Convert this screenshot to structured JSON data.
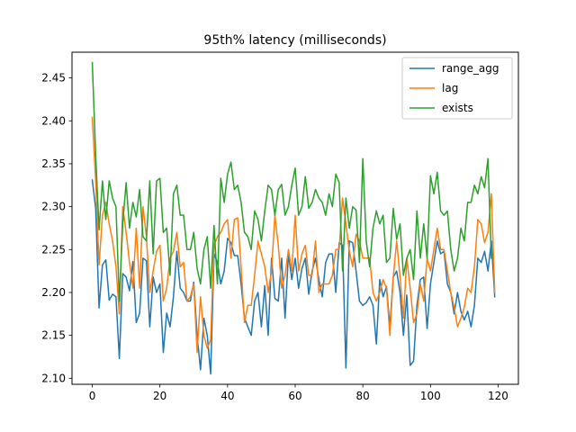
{
  "chart_data": {
    "type": "line",
    "title": "95th% latency (milliseconds)",
    "xlabel": "",
    "ylabel": "",
    "xlim": [
      -6,
      126
    ],
    "ylim": [
      2.093,
      2.48
    ],
    "xticks": [
      0,
      20,
      40,
      60,
      80,
      100,
      120
    ],
    "yticks": [
      2.1,
      2.15,
      2.2,
      2.25,
      2.3,
      2.35,
      2.4,
      2.45
    ],
    "ytick_labels": [
      "2.10",
      "2.15",
      "2.20",
      "2.25",
      "2.30",
      "2.35",
      "2.40",
      "2.45"
    ],
    "grid": false,
    "legend_position": "upper right",
    "series": [
      {
        "name": "range_agg",
        "color": "#1f77b4",
        "values": [
          2.331,
          2.298,
          2.182,
          2.232,
          2.238,
          2.191,
          2.198,
          2.195,
          2.123,
          2.222,
          2.218,
          2.202,
          2.236,
          2.165,
          2.176,
          2.24,
          2.237,
          2.16,
          2.218,
          2.2,
          2.21,
          2.13,
          2.176,
          2.16,
          2.195,
          2.248,
          2.205,
          2.2,
          2.19,
          2.19,
          2.212,
          2.15,
          2.11,
          2.17,
          2.15,
          2.105,
          2.245,
          2.235,
          2.21,
          2.225,
          2.263,
          2.258,
          2.243,
          2.243,
          2.21,
          2.17,
          2.16,
          2.15,
          2.19,
          2.2,
          2.16,
          2.208,
          2.15,
          2.24,
          2.193,
          2.19,
          2.24,
          2.17,
          2.245,
          2.215,
          2.24,
          2.205,
          2.228,
          2.24,
          2.198,
          2.225,
          2.24,
          2.215,
          2.195,
          2.235,
          2.245,
          2.245,
          2.2,
          2.258,
          2.255,
          2.112,
          2.26,
          2.258,
          2.225,
          2.19,
          2.185,
          2.188,
          2.195,
          2.185,
          2.14,
          2.215,
          2.195,
          2.207,
          2.16,
          2.218,
          2.225,
          2.2,
          2.15,
          2.197,
          2.115,
          2.12,
          2.185,
          2.215,
          2.218,
          2.158,
          2.21,
          2.235,
          2.26,
          2.245,
          2.248,
          2.21,
          2.2,
          2.175,
          2.2,
          2.178,
          2.168,
          2.178,
          2.16,
          2.185,
          2.24,
          2.235,
          2.248,
          2.225,
          2.26,
          2.195
        ]
      },
      {
        "name": "lag",
        "color": "#ff7f0e",
        "values": [
          2.404,
          2.33,
          2.232,
          2.29,
          2.305,
          2.28,
          2.26,
          2.23,
          2.175,
          2.3,
          2.27,
          2.235,
          2.205,
          2.275,
          2.205,
          2.3,
          2.265,
          2.2,
          2.225,
          2.248,
          2.255,
          2.19,
          2.205,
          2.24,
          2.248,
          2.27,
          2.23,
          2.235,
          2.19,
          2.195,
          2.21,
          2.13,
          2.195,
          2.15,
          2.135,
          2.145,
          2.255,
          2.265,
          2.27,
          2.28,
          2.285,
          2.24,
          2.285,
          2.287,
          2.23,
          2.165,
          2.185,
          2.185,
          2.22,
          2.26,
          2.245,
          2.23,
          2.2,
          2.225,
          2.29,
          2.255,
          2.205,
          2.22,
          2.25,
          2.225,
          2.29,
          2.225,
          2.245,
          2.255,
          2.22,
          2.22,
          2.26,
          2.2,
          2.21,
          2.21,
          2.21,
          2.22,
          2.25,
          2.25,
          2.31,
          2.28,
          2.248,
          2.23,
          2.268,
          2.26,
          2.24,
          2.24,
          2.24,
          2.2,
          2.19,
          2.2,
          2.215,
          2.205,
          2.15,
          2.218,
          2.26,
          2.218,
          2.17,
          2.24,
          2.205,
          2.165,
          2.175,
          2.21,
          2.19,
          2.24,
          2.225,
          2.25,
          2.275,
          2.25,
          2.25,
          2.225,
          2.2,
          2.183,
          2.16,
          2.17,
          2.183,
          2.205,
          2.2,
          2.23,
          2.285,
          2.28,
          2.258,
          2.27,
          2.315,
          2.2
        ]
      },
      {
        "name": "exists",
        "color": "#2ca02c",
        "values": [
          2.468,
          2.36,
          2.273,
          2.33,
          2.285,
          2.33,
          2.31,
          2.3,
          2.19,
          2.28,
          2.328,
          2.275,
          2.305,
          2.288,
          2.32,
          2.265,
          2.26,
          2.33,
          2.245,
          2.33,
          2.333,
          2.27,
          2.275,
          2.22,
          2.315,
          2.325,
          2.29,
          2.29,
          2.25,
          2.25,
          2.27,
          2.228,
          2.21,
          2.25,
          2.265,
          2.205,
          2.278,
          2.21,
          2.333,
          2.305,
          2.338,
          2.352,
          2.32,
          2.325,
          2.305,
          2.27,
          2.265,
          2.25,
          2.295,
          2.285,
          2.26,
          2.295,
          2.325,
          2.32,
          2.29,
          2.32,
          2.326,
          2.29,
          2.3,
          2.325,
          2.345,
          2.29,
          2.3,
          2.335,
          2.298,
          2.305,
          2.32,
          2.31,
          2.305,
          2.29,
          2.315,
          2.3,
          2.338,
          2.328,
          2.225,
          2.31,
          2.275,
          2.3,
          2.296,
          2.235,
          2.356,
          2.26,
          2.23,
          2.275,
          2.295,
          2.28,
          2.29,
          2.235,
          2.24,
          2.298,
          2.262,
          2.28,
          2.22,
          2.24,
          2.25,
          2.215,
          2.295,
          2.24,
          2.28,
          2.24,
          2.336,
          2.315,
          2.34,
          2.295,
          2.29,
          2.295,
          2.25,
          2.225,
          2.24,
          2.275,
          2.26,
          2.305,
          2.305,
          2.325,
          2.315,
          2.335,
          2.322,
          2.356,
          2.24
        ]
      }
    ]
  }
}
